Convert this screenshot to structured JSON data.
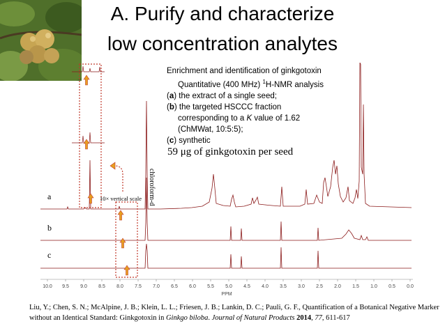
{
  "slide": {
    "title_line1": "A. Purify and characterize",
    "title_line2": "low concentration analytes"
  },
  "info": {
    "line1": "Enrichment and identification of ginkgotoxin",
    "line2_pre": "Quantitative (400 MHz) ",
    "line2_sup": "1",
    "line2_post": "H-NMR analysis",
    "a_letter": "a",
    "a_text": " the extract of a single seed;",
    "b_letter": "b",
    "b_text": " the targeted HSCCC fraction",
    "b_cont1_pre": "corresponding to a ",
    "b_cont1_k": "K",
    "b_cont1_post": " value of 1.62",
    "b_cont2": "(ChMWat, 10:5:5);",
    "c_letter": "c",
    "c_text": " synthetic",
    "yield": "59 μg of ginkgotoxin per seed"
  },
  "spectrum": {
    "trace_labels": [
      "a",
      "b",
      "c"
    ],
    "solvent_label": "chloroform-d",
    "scale_note": "10× vertical scale",
    "ppm_ticks": [
      "10.0",
      "9.5",
      "9.0",
      "8.5",
      "8.0",
      "7.5",
      "7.0",
      "6.5",
      "6.0",
      "5.5",
      "5.0",
      "4.5",
      "4.0",
      "3.5",
      "3.0",
      "2.5",
      "2.0",
      "1.5",
      "1.0",
      "0.5",
      "0.0"
    ],
    "axis_unit": "PPM",
    "colors": {
      "trace": "#8b1a1a",
      "box": "#c0392b",
      "arrow": "#e8a020"
    }
  },
  "citation": {
    "authors": "Liu, Y.; Chen, S. N.; McAlpine, J. B.; Klein, L. L.; Friesen, J. B.; Lankin, D. C.; Pauli, G. F., Quantification of a Botanical Negative Marker without an Identical Standard: Ginkgotoxin in ",
    "genus": "Ginkgo biloba",
    "sep": ". ",
    "journal": "Journal of Natural Products",
    "year": " 2014",
    "vol_sep": ", ",
    "volume": "77",
    "pages": ", 611-617"
  }
}
